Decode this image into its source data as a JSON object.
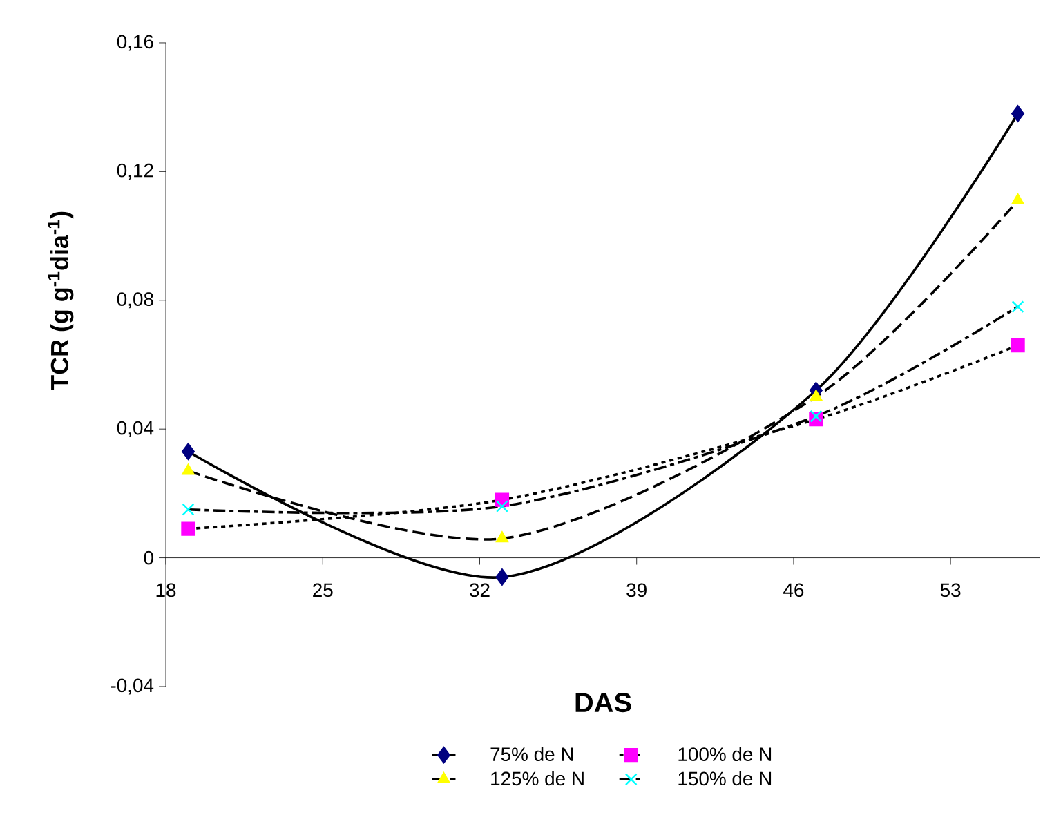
{
  "chart_data": {
    "type": "line",
    "xlabel": "DAS",
    "ylabel": "TCR (g g$^{-1}$dia$^{-1}$)",
    "x": [
      19,
      33,
      47,
      56
    ],
    "series": [
      {
        "name": "75% de N",
        "color": "#000080",
        "marker": "diamond",
        "line_style": "solid",
        "values": [
          0.033,
          -0.006,
          0.052,
          0.138
        ]
      },
      {
        "name": "100% de N",
        "color": "#ff00ff",
        "marker": "square",
        "line_style": "dotted",
        "values": [
          0.009,
          0.018,
          0.043,
          0.066
        ]
      },
      {
        "name": "125% de N",
        "color": "#ffff00",
        "marker": "triangle",
        "line_style": "dashed",
        "values": [
          0.027,
          0.006,
          0.05,
          0.111
        ]
      },
      {
        "name": "150% de N",
        "color": "#00ffff",
        "marker": "cross",
        "line_style": "dashdot",
        "values": [
          0.015,
          0.016,
          0.044,
          0.078
        ]
      }
    ],
    "xlim": [
      18,
      57
    ],
    "xticks": [
      18,
      25,
      32,
      39,
      46,
      53
    ],
    "ylim": [
      -0.04,
      0.16
    ],
    "yticks": [
      {
        "value": -0.04,
        "label": "-0,04"
      },
      0,
      {
        "value": 0.04,
        "label": "0,04"
      },
      {
        "value": 0.08,
        "label": "0,08"
      },
      {
        "value": 0.12,
        "label": "0,12"
      },
      {
        "value": 0.16,
        "label": "0,16"
      }
    ],
    "grid": false,
    "legend": "bottom"
  }
}
